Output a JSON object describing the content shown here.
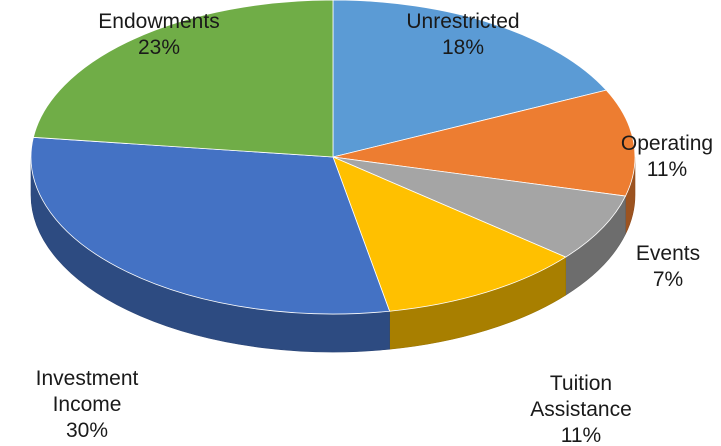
{
  "chart_data": {
    "type": "pie",
    "title": "",
    "slices": [
      {
        "label": "Unrestricted",
        "value": 18,
        "pct_text": "18%",
        "color": "#5b9bd5"
      },
      {
        "label": "Operating",
        "value": 11,
        "pct_text": "11%",
        "color": "#ed7d31"
      },
      {
        "label": "Events",
        "value": 7,
        "pct_text": "7%",
        "color": "#a5a5a5"
      },
      {
        "label": "Tuition Assistance",
        "value": 11,
        "pct_text": "11%",
        "color": "#ffc000"
      },
      {
        "label": "Investment Income",
        "value": 30,
        "pct_text": "30%",
        "color": "#4472c4"
      },
      {
        "label": "Endowments",
        "value": 23,
        "pct_text": "23%",
        "color": "#70ad47"
      }
    ]
  }
}
